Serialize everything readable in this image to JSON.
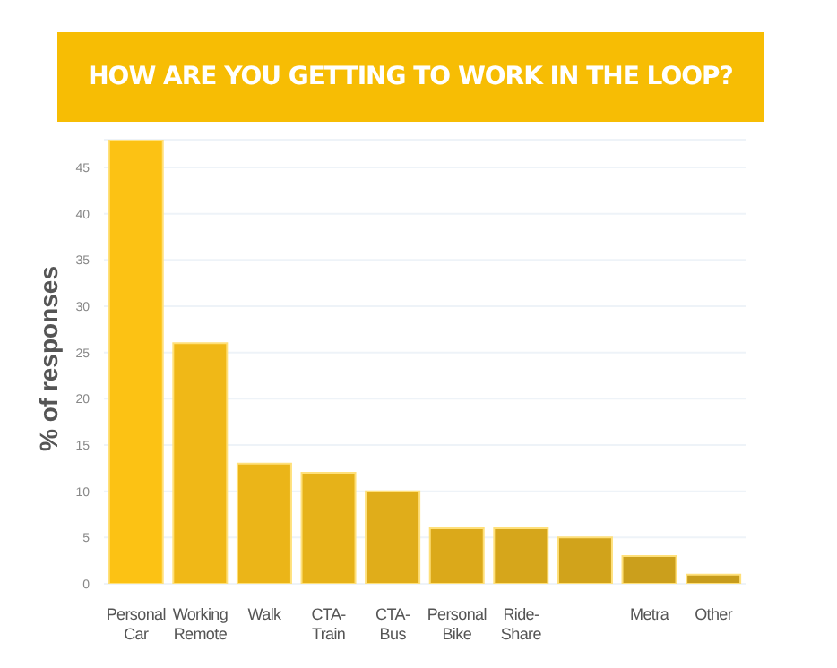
{
  "chart_data": {
    "type": "bar",
    "title": "HOW ARE YOU GETTING TO WORK IN THE LOOP?",
    "ylabel": "% of responses",
    "categories": [
      "Personal Car",
      "Working Remote",
      "Walk",
      "CTA-Train",
      "CTA-Bus",
      "Personal Bike",
      "Ride-Share",
      null,
      "Metra",
      "Other"
    ],
    "values": [
      48,
      26,
      13,
      12,
      10,
      6,
      6,
      5,
      3,
      1
    ],
    "colors": [
      "#fcc214",
      "#f0b817",
      "#ebb518",
      "#e6b219",
      "#e0ad1a",
      "#dba91a",
      "#d6a61b",
      "#d1a31b",
      "#cb9f1c",
      "#c79c1c"
    ],
    "ylim": [
      0,
      48
    ],
    "yticks": [
      0,
      5,
      10,
      15,
      20,
      25,
      30,
      35,
      40,
      45
    ],
    "grid": "y"
  }
}
